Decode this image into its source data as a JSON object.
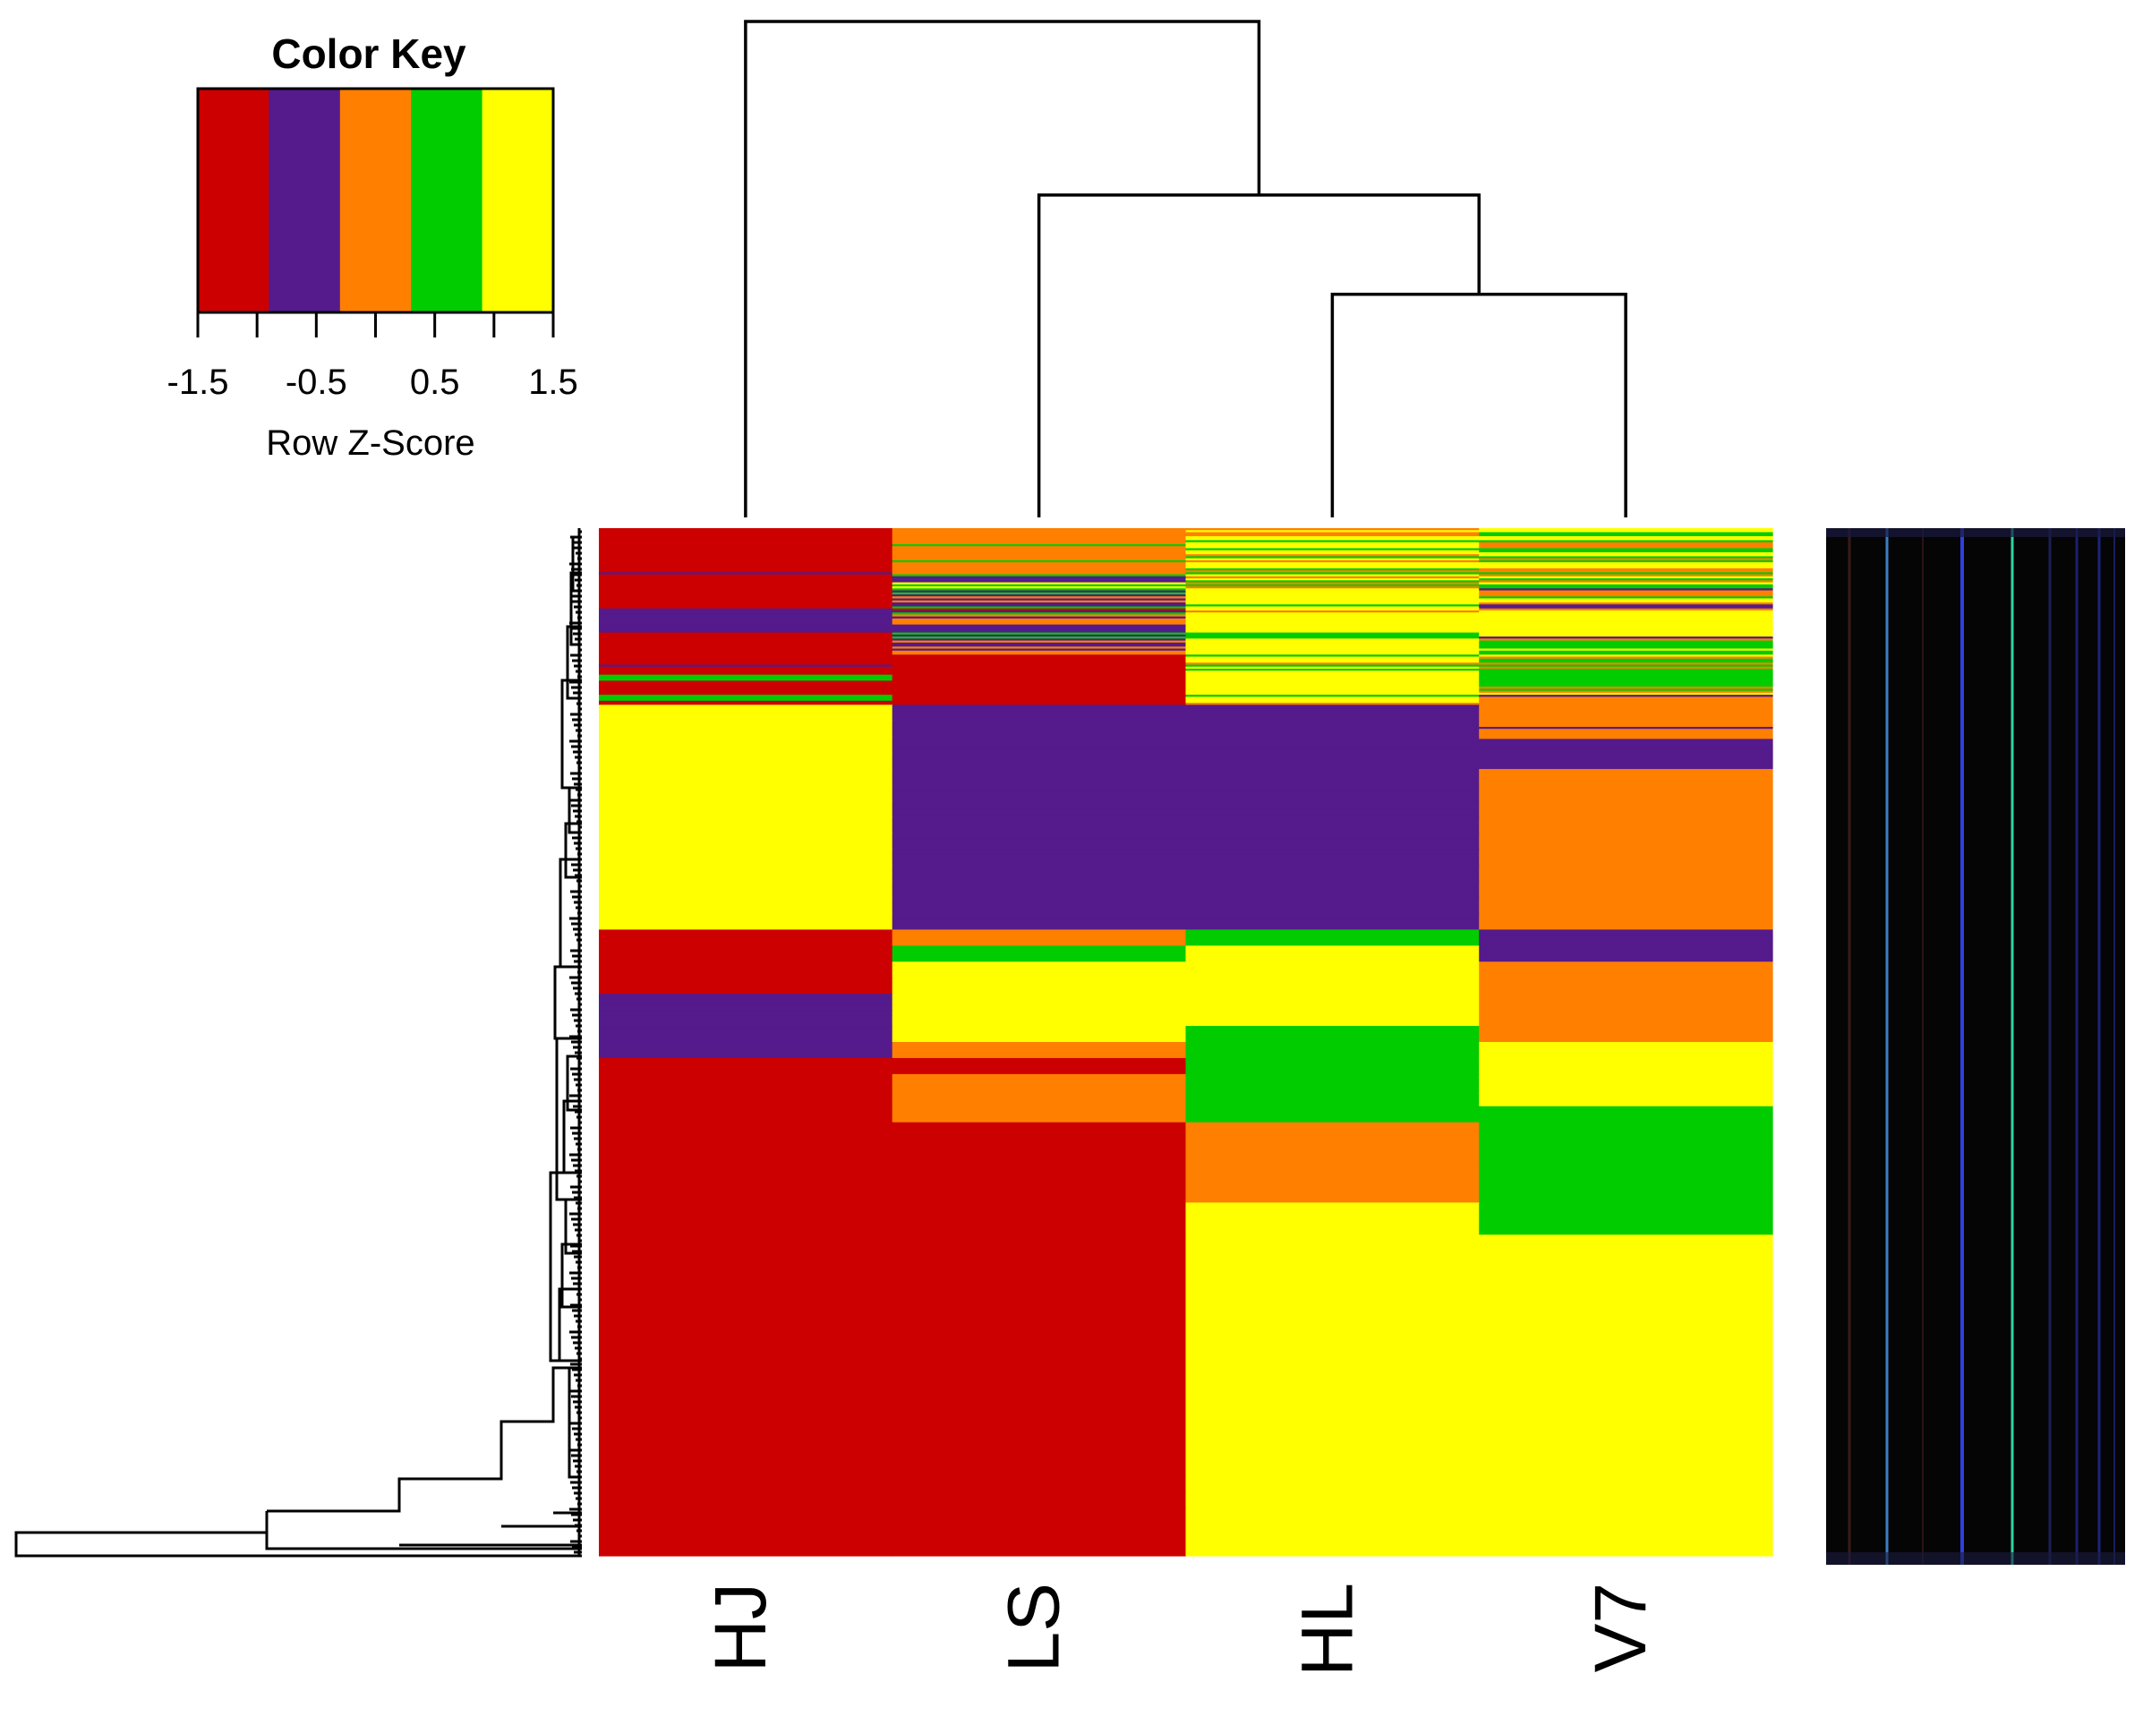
{
  "chart_data": {
    "type": "heatmap",
    "columns": [
      "HJ",
      "LS",
      "HL",
      "V7"
    ],
    "palette": [
      "#cc0000",
      "#551a8b",
      "#ff8000",
      "#00cc00",
      "#ffff00"
    ],
    "color_key": {
      "title": "Color Key",
      "xlabel": "Row Z-Score",
      "ticks": [
        "-1.5",
        "-0.5",
        "0.5",
        "1.5"
      ],
      "range": [
        -1.5,
        1.5
      ],
      "bins": 5
    },
    "column_dendrogram": [
      {
        "merge": [
          "HL",
          "V7"
        ],
        "height": 0.45
      },
      {
        "merge": [
          "LS",
          "HL+V7"
        ],
        "height": 0.65
      },
      {
        "merge": [
          "HJ",
          "LS+HL+V7"
        ],
        "height": 1.0
      }
    ],
    "row_blocks": {
      "rows_per_block": 8,
      "blocks": [
        [
          "RRRRRRRR",
          "OOOOOOOO",
          "OYOOYYGY",
          "YYGGYYGO"
        ],
        [
          "RRRRRRRR",
          "GOOOOOOO",
          "YYGYYOGY",
          "OOGGYYGO"
        ],
        [
          "RRRRRRPR",
          "GOOOOOOG",
          "OYYYGOGY",
          "GYYYOOGO"
        ],
        [
          "RRRRRRRR",
          "PPPYGYGP",
          "OYGOGOYY",
          "YGOYGGPO"
        ],
        [
          "RRRRRRRR",
          "GPOPOPPG",
          "YYYYYYGY",
          "OOGYYOPP"
        ],
        [
          "PPPPPPPP",
          "RPGOPOOO",
          "YOYYYYYY",
          "OYYYYYYY"
        ],
        [
          "PPPPRRRR",
          "PPPPGPGP",
          "YYYYGGGY",
          "YYYYYYPO"
        ],
        [
          "RRRRRRRR",
          "OPPOPOOR",
          "YYYYYYYG",
          "GGGGYGGY"
        ],
        [
          "RRRRPRRR",
          "RRRRRRRR",
          "YYYOGYGY",
          "OGGOGOGG"
        ],
        [
          "RGGGRRRR",
          "RRRRRRRR",
          "YYYYYYYY",
          "GGGGGGGO"
        ],
        [
          "RRRGGGRR",
          "RRRRRRRR",
          "YYYGYYYO",
          "GOYPOOOO"
        ],
        [
          "YYYYYYYY",
          "PPPPPPPP",
          "PPPPPPPP",
          "OOOOOOOO"
        ],
        [
          "YYYYYYYY",
          "PPPPPPPP",
          "PPPPPPPP",
          "OOOPOOOO"
        ],
        [
          "YYYYYYYY",
          "PPPPPPPP",
          "PPPPPPPP",
          "OPPPPPPP"
        ],
        [
          "YYYYYYYY",
          "PPPPPPPP",
          "PPPPPPPP",
          "PPPPPPPP"
        ],
        [
          "YYYYYYYY",
          "PPPPPPPP",
          "PPPPPPPP",
          "OOOOOOOO"
        ],
        [
          "YYYYYYYY",
          "PPPPPPPP",
          "PPPPPPPP",
          "OOOOOOOO"
        ],
        [
          "YYYYYYYY",
          "PPPPPPPP",
          "PPPPPPPP",
          "OOOOOOOO"
        ],
        [
          "YYYYYYYY",
          "PPPPPPPP",
          "PPPPPPPP",
          "OOOOOOOO"
        ],
        [
          "YYYYYYYY",
          "PPPPPPPP",
          "PPPPPPPP",
          "OOOOOOOO"
        ],
        [
          "YYYYYYYY",
          "PPPPPPPP",
          "PPPPPPPP",
          "OOOOOOOO"
        ],
        [
          "YYYYYYYY",
          "PPPPPPPP",
          "PPPPPPPP",
          "OOOOOOOO"
        ],
        [
          "YYYYYYYY",
          "PPPPPPPP",
          "PPPPPPPP",
          "OOOOOOOO"
        ],
        [
          "YYYYYYYY",
          "PPPPPPPP",
          "PPPPPPPP",
          "OOOOOOOO"
        ],
        [
          "YYYYYYYY",
          "PPPPPPPP",
          "PPPPPPPP",
          "OOOOOOOO"
        ],
        [
          "RRRRRRRR",
          "OOOOOOOO",
          "GGGGGGGG",
          "PPPPPPPP"
        ],
        [
          "RRRRRRRR",
          "GGGGGGGG",
          "YYYYYYYY",
          "PPPPPPPP"
        ],
        [
          "RRRRRRRR",
          "YYYYYYYY",
          "YYYYYYYY",
          "OOOOOOOO"
        ],
        [
          "RRRRRRRR",
          "YYYYYYYY",
          "YYYYYYYY",
          "OOOOOOOO"
        ],
        [
          "PPPPPPPP",
          "YYYYYYYY",
          "YYYYYYYY",
          "OOOOOOOO"
        ],
        [
          "PPPPPPPP",
          "YYYYYYYY",
          "YYYYYYYY",
          "OOOOOOOO"
        ],
        [
          "PPPPPPPP",
          "YYYYYYYY",
          "GGGGGGGG",
          "OOOOOOOO"
        ],
        [
          "PPPPPPPP",
          "OOOOOOOO",
          "GGGGGGGG",
          "YYYYYYYY"
        ],
        [
          "RRRRRRRR",
          "RRRRRRRR",
          "GGGGGGGG",
          "YYYYYYYY"
        ],
        [
          "RRRRRRRR",
          "OOOOOOOO",
          "GGGGGGGG",
          "YYYYYYYY"
        ],
        [
          "RRRRRRRR",
          "OOOOOOOO",
          "GGGGGGGG",
          "YYYYYYYY"
        ],
        [
          "RRRRRRRR",
          "OOOOOOOO",
          "GGGGGGGG",
          "GGGGGGGG"
        ],
        [
          "RRRRRRRR",
          "RRRRRRRR",
          "OOOOOOOO",
          "GGGGGGGG"
        ],
        [
          "RRRRRRRR",
          "RRRRRRRR",
          "OOOOOOOO",
          "GGGGGGGG"
        ],
        [
          "RRRRRRRR",
          "RRRRRRRR",
          "OOOOOOOO",
          "GGGGGGGG"
        ],
        [
          "RRRRRRRR",
          "RRRRRRRR",
          "OOOOOOOO",
          "GGGGGGGG"
        ],
        [
          "RRRRRRRR",
          "RRRRRRRR",
          "OOOOOOOO",
          "GGGGGGGG"
        ],
        [
          "RRRRRRRR",
          "RRRRRRRR",
          "YYYYYYYY",
          "GGGGGGGG"
        ],
        [
          "RRRRRRRR",
          "RRRRRRRR",
          "YYYYYYYY",
          "GGGGGGGG"
        ],
        [
          "RRRRRRRR",
          "RRRRRRRR",
          "YYYYYYYY",
          "YYYYYYYY"
        ],
        [
          "RRRRRRRR",
          "RRRRRRRR",
          "YYYYYYYY",
          "YYYYYYYY"
        ],
        [
          "RRRRRRRR",
          "RRRRRRRR",
          "YYYYYYYY",
          "YYYYYYYY"
        ],
        [
          "RRRRRRRR",
          "RRRRRRRR",
          "YYYYYYYY",
          "YYYYYYYY"
        ],
        [
          "RRRRRRRR",
          "RRRRRRRR",
          "YYYYYYYY",
          "YYYYYYYY"
        ],
        [
          "RRRRRRRR",
          "RRRRRRRR",
          "YYYYYYYY",
          "YYYYYYYY"
        ],
        [
          "RRRRRRRR",
          "RRRRRRRR",
          "YYYYYYYY",
          "YYYYYYYY"
        ],
        [
          "RRRRRRRR",
          "RRRRRRRR",
          "YYYYYYYY",
          "YYYYYYYY"
        ],
        [
          "RRRRRRRR",
          "RRRRRRRR",
          "YYYYYYYY",
          "YYYYYYYY"
        ],
        [
          "RRRRRRRR",
          "RRRRRRRR",
          "YYYYYYYY",
          "YYYYYYYY"
        ],
        [
          "RRRRRRRR",
          "RRRRRRRR",
          "YYYYYYYY",
          "YYYYYYYY"
        ],
        [
          "RRRRRRRR",
          "RRRRRRRR",
          "YYYYYYYY",
          "YYYYYYYY"
        ],
        [
          "RRRRRRRR",
          "RRRRRRRR",
          "YYYYYYYY",
          "YYYYYYYY"
        ],
        [
          "RRRRRRRR",
          "RRRRRRRR",
          "YYYYYYYY",
          "YYYYYYYY"
        ],
        [
          "RRRRRRRR",
          "RRRRRRRR",
          "YYYYYYYY",
          "YYYYYYYY"
        ],
        [
          "RRRRRRRR",
          "RRRRRRRR",
          "YYYYYYYY",
          "YYYYYYYY"
        ],
        [
          "RRRRRRRR",
          "RRRRRRRR",
          "YYYYYYYY",
          "YYYYYYYY"
        ],
        [
          "RRRRRRRR",
          "RRRRRRRR",
          "YYYYYYYY",
          "YYYYYYYY"
        ],
        [
          "RRRRRRRR",
          "RRRRRRRR",
          "YYYYYYYY",
          "YYYYYYYY"
        ],
        [
          "RRRRRRRR",
          "RRRRRRRR",
          "YYYYYYYY",
          "YYYYYYYY"
        ]
      ]
    }
  }
}
